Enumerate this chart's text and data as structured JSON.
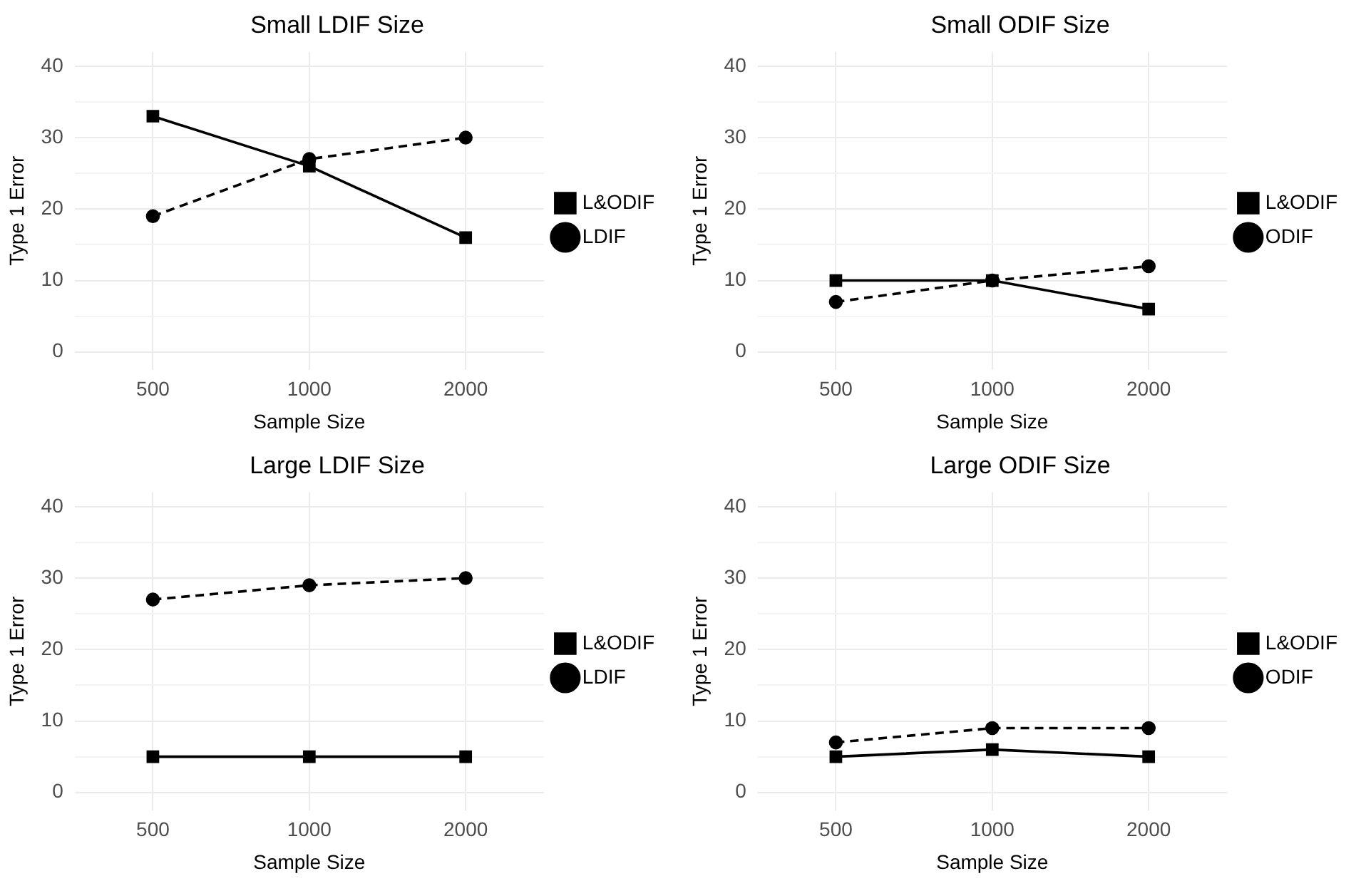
{
  "chart_data": [
    {
      "type": "line",
      "title": "Small LDIF Size",
      "xlabel": "Sample Size",
      "ylabel": "Type 1 Error",
      "categories": [
        "500",
        "1000",
        "2000"
      ],
      "ylim": [
        -2.5,
        42
      ],
      "yticks": [
        0,
        {
          "value": 5,
          "label": null
        },
        10,
        {
          "value": 15,
          "label": null
        },
        20,
        {
          "value": 25,
          "label": null
        },
        30,
        {
          "value": 35,
          "label": null
        },
        40
      ],
      "grid": true,
      "legend": "right",
      "series": [
        {
          "name": "LDIF",
          "color": "#000000",
          "values": [
            19,
            27,
            30
          ],
          "marker": "circle",
          "line_style": "dashed"
        },
        {
          "name": "L&ODIF",
          "color": "#000000",
          "values": [
            33,
            26,
            16
          ],
          "marker": "square",
          "line_style": "solid"
        }
      ]
    },
    {
      "type": "line",
      "title": "Small ODIF Size",
      "xlabel": "Sample Size",
      "ylabel": "Type 1 Error",
      "categories": [
        "500",
        "1000",
        "2000"
      ],
      "ylim": [
        -2.5,
        42
      ],
      "yticks": [
        0,
        {
          "value": 5,
          "label": null
        },
        10,
        {
          "value": 15,
          "label": null
        },
        20,
        {
          "value": 25,
          "label": null
        },
        30,
        {
          "value": 35,
          "label": null
        },
        40
      ],
      "grid": true,
      "legend": "right",
      "series": [
        {
          "name": "ODIF",
          "color": "#000000",
          "values": [
            7,
            10,
            12
          ],
          "marker": "circle",
          "line_style": "dashed"
        },
        {
          "name": "L&ODIF",
          "color": "#000000",
          "values": [
            10,
            10,
            6
          ],
          "marker": "square",
          "line_style": "solid"
        }
      ]
    },
    {
      "type": "line",
      "title": "Large LDIF Size",
      "xlabel": "Sample Size",
      "ylabel": "Type 1 Error",
      "categories": [
        "500",
        "1000",
        "2000"
      ],
      "ylim": [
        -2.5,
        42
      ],
      "yticks": [
        0,
        {
          "value": 5,
          "label": null
        },
        10,
        {
          "value": 15,
          "label": null
        },
        20,
        {
          "value": 25,
          "label": null
        },
        30,
        {
          "value": 35,
          "label": null
        },
        40
      ],
      "grid": true,
      "legend": "right",
      "series": [
        {
          "name": "LDIF",
          "color": "#000000",
          "values": [
            27,
            29,
            30
          ],
          "marker": "circle",
          "line_style": "dashed"
        },
        {
          "name": "L&ODIF",
          "color": "#000000",
          "values": [
            5,
            5,
            5
          ],
          "marker": "square",
          "line_style": "solid"
        }
      ]
    },
    {
      "type": "line",
      "title": "Large ODIF Size",
      "xlabel": "Sample Size",
      "ylabel": "Type 1 Error",
      "categories": [
        "500",
        "1000",
        "2000"
      ],
      "ylim": [
        -2.5,
        42
      ],
      "yticks": [
        0,
        {
          "value": 5,
          "label": null
        },
        10,
        {
          "value": 15,
          "label": null
        },
        20,
        {
          "value": 25,
          "label": null
        },
        30,
        {
          "value": 35,
          "label": null
        },
        40
      ],
      "grid": true,
      "legend": "right",
      "series": [
        {
          "name": "ODIF",
          "color": "#000000",
          "values": [
            7,
            9,
            9
          ],
          "marker": "circle",
          "line_style": "dashed"
        },
        {
          "name": "L&ODIF",
          "color": "#000000",
          "values": [
            5,
            6,
            5
          ],
          "marker": "square",
          "line_style": "solid"
        }
      ]
    }
  ]
}
